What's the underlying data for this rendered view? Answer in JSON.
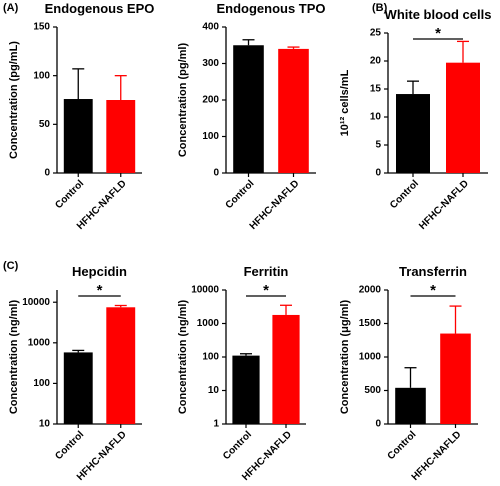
{
  "chart_data": [
    {
      "type": "bar",
      "panel_label": "(A)",
      "title": "Endogenous EPO",
      "y_label": "Concentration (pg/mL)",
      "categories": [
        "Control",
        "HFHC-NAFLD"
      ],
      "values": [
        76,
        75
      ],
      "errors": [
        31,
        25
      ],
      "colors": [
        "#000000",
        "#ff0000"
      ],
      "ylim": [
        0,
        150
      ],
      "yticks": [
        0,
        50,
        100,
        150
      ],
      "log_scale": false,
      "grid": false
    },
    {
      "type": "bar",
      "title": "Endogenous TPO",
      "y_label": "Concentration (pg/ml)",
      "categories": [
        "Control",
        "HFHC-NAFLD"
      ],
      "values": [
        350,
        340
      ],
      "errors": [
        15,
        5
      ],
      "colors": [
        "#000000",
        "#ff0000"
      ],
      "ylim": [
        0,
        400
      ],
      "yticks": [
        0,
        100,
        200,
        300,
        400
      ],
      "log_scale": false,
      "grid": false
    },
    {
      "type": "bar",
      "panel_label": "(B)",
      "title": "White blood cells",
      "y_label": "10¹² cells/mL",
      "categories": [
        "Control",
        "HFHC-NAFLD"
      ],
      "values": [
        14.1,
        19.7
      ],
      "errors": [
        2.3,
        3.8
      ],
      "colors": [
        "#000000",
        "#ff0000"
      ],
      "ylim": [
        0,
        25
      ],
      "yticks": [
        0,
        5,
        10,
        15,
        20,
        25
      ],
      "log_scale": false,
      "grid": false,
      "annotation": "*"
    },
    {
      "type": "bar",
      "panel_label": "(C)",
      "title": "Hepcidin",
      "y_label": "Concentration (ng/ml)",
      "categories": [
        "Control",
        "HFHC-NAFLD"
      ],
      "values": [
        580,
        7500
      ],
      "errors": [
        70,
        800
      ],
      "colors": [
        "#000000",
        "#ff0000"
      ],
      "ylim": [
        10,
        20000
      ],
      "yticks": [
        10,
        100,
        1000,
        10000
      ],
      "log_scale": true,
      "grid": false,
      "annotation": "*"
    },
    {
      "type": "bar",
      "title": "Ferritin",
      "y_label": "Concentration (ng/ml)",
      "categories": [
        "Control",
        "HFHC-NAFLD"
      ],
      "values": [
        110,
        1800
      ],
      "errors": [
        15,
        1700
      ],
      "colors": [
        "#000000",
        "#ff0000"
      ],
      "ylim": [
        1,
        10000
      ],
      "yticks": [
        1,
        10,
        100,
        1000,
        10000
      ],
      "log_scale": true,
      "grid": false,
      "annotation": "*"
    },
    {
      "type": "bar",
      "title": "Transferrin",
      "y_label": "Concentration (μg/ml)",
      "categories": [
        "Control",
        "HFHC-NAFLD"
      ],
      "values": [
        540,
        1350
      ],
      "errors": [
        300,
        410
      ],
      "colors": [
        "#000000",
        "#ff0000"
      ],
      "ylim": [
        0,
        2000
      ],
      "yticks": [
        0,
        500,
        1000,
        1500,
        2000
      ],
      "log_scale": false,
      "grid": false,
      "annotation": "*"
    }
  ]
}
